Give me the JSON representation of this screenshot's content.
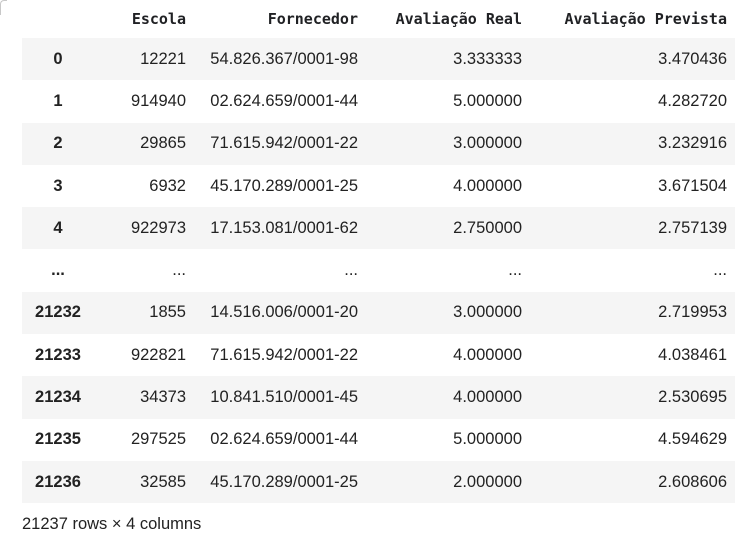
{
  "table": {
    "index_header": "",
    "columns": [
      "Escola",
      "Fornecedor",
      "Avaliação Real",
      "Avaliação Prevista"
    ],
    "rows": [
      {
        "index": "0",
        "escola": "12221",
        "fornecedor": "54.826.367/0001-98",
        "avaliacao_real": "3.333333",
        "avaliacao_prevista": "3.470436"
      },
      {
        "index": "1",
        "escola": "914940",
        "fornecedor": "02.624.659/0001-44",
        "avaliacao_real": "5.000000",
        "avaliacao_prevista": "4.282720"
      },
      {
        "index": "2",
        "escola": "29865",
        "fornecedor": "71.615.942/0001-22",
        "avaliacao_real": "3.000000",
        "avaliacao_prevista": "3.232916"
      },
      {
        "index": "3",
        "escola": "6932",
        "fornecedor": "45.170.289/0001-25",
        "avaliacao_real": "4.000000",
        "avaliacao_prevista": "3.671504"
      },
      {
        "index": "4",
        "escola": "922973",
        "fornecedor": "17.153.081/0001-62",
        "avaliacao_real": "2.750000",
        "avaliacao_prevista": "2.757139"
      },
      {
        "index": "...",
        "escola": "...",
        "fornecedor": "...",
        "avaliacao_real": "...",
        "avaliacao_prevista": "..."
      },
      {
        "index": "21232",
        "escola": "1855",
        "fornecedor": "14.516.006/0001-20",
        "avaliacao_real": "3.000000",
        "avaliacao_prevista": "2.719953"
      },
      {
        "index": "21233",
        "escola": "922821",
        "fornecedor": "71.615.942/0001-22",
        "avaliacao_real": "4.000000",
        "avaliacao_prevista": "4.038461"
      },
      {
        "index": "21234",
        "escola": "34373",
        "fornecedor": "10.841.510/0001-45",
        "avaliacao_real": "4.000000",
        "avaliacao_prevista": "2.530695"
      },
      {
        "index": "21235",
        "escola": "297525",
        "fornecedor": "02.624.659/0001-44",
        "avaliacao_real": "5.000000",
        "avaliacao_prevista": "4.594629"
      },
      {
        "index": "21236",
        "escola": "32585",
        "fornecedor": "45.170.289/0001-25",
        "avaliacao_real": "2.000000",
        "avaliacao_prevista": "2.608606"
      }
    ]
  },
  "footer": {
    "shape_text": "21237 rows × 4 columns"
  },
  "colors": {
    "stripe": "#f5f5f5",
    "text": "#222222"
  }
}
